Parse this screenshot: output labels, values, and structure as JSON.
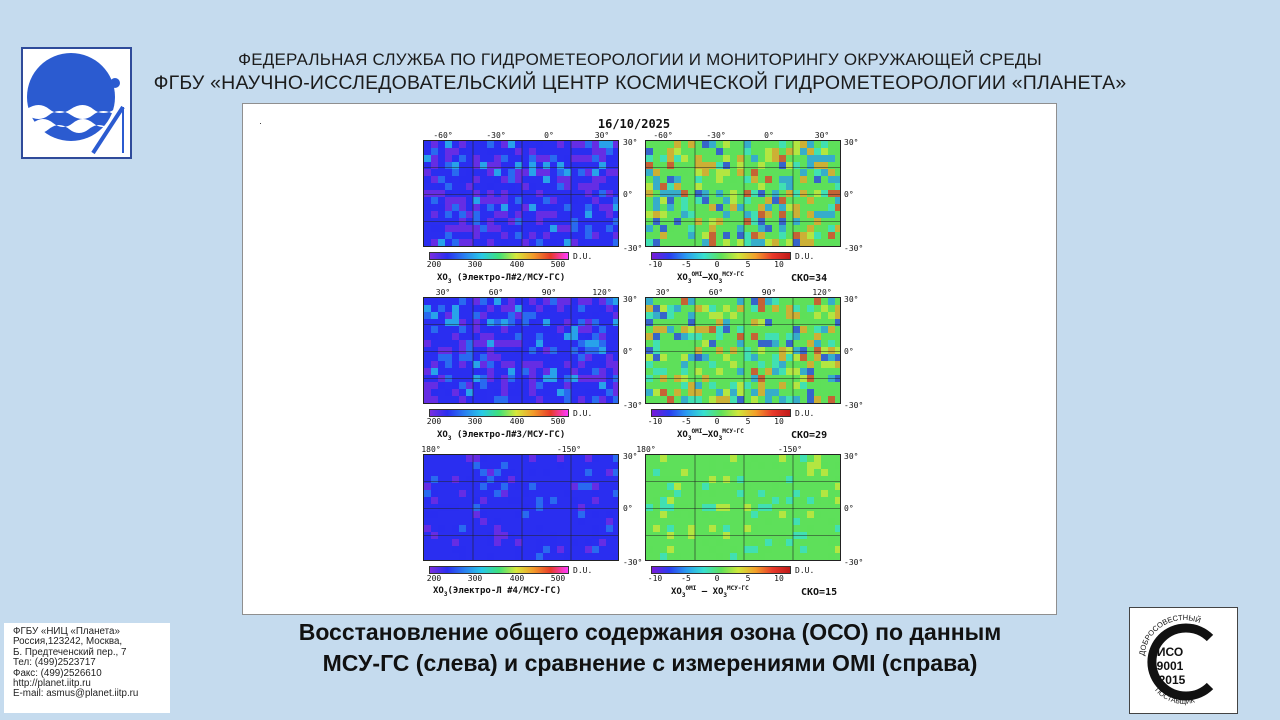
{
  "header": {
    "line1": "ФЕДЕРАЛЬНАЯ СЛУЖБА ПО ГИДРОМЕТЕОРОЛОГИИ И МОНИТОРИНГУ ОКРУЖАЮЩЕЙ СРЕДЫ",
    "line2": "ФГБУ «НАУЧНО-ИССЛЕДОВАТЕЛЬСКИЙ ЦЕНТР КОСМИЧЕСКОЙ ГИДРОМЕТЕОРОЛОГИИ «ПЛАНЕТА»"
  },
  "figure": {
    "date": "16/10/2025",
    "unit": "D.U.",
    "left_ticks": [
      "200",
      "300",
      "400",
      "500"
    ],
    "right_ticks": [
      "-10",
      "-5",
      "0",
      "5",
      "10"
    ],
    "lat_labels": [
      "30°",
      "0°",
      "-30°"
    ],
    "rows": [
      {
        "lon_labels": [
          "-60°",
          "-30°",
          "0°",
          "30°"
        ],
        "left_label": {
          "pre": "XO",
          "sub": "3",
          "post": " (Электро-Л#2/МСУ-ГС)"
        },
        "right_label": {
          "a": "XO",
          "a_sub": "3",
          "a_sup": "OMI",
          "b": "–XO",
          "b_sub": "3",
          "b_sup": "МСУ-ГС"
        },
        "sko": "СКО=34"
      },
      {
        "lon_labels": [
          "30°",
          "60°",
          "90°",
          "120°"
        ],
        "left_label": {
          "pre": "XO",
          "sub": "3",
          "post": " (Электро-Л#3/МСУ-ГС)"
        },
        "right_label": {
          "a": "XO",
          "a_sub": "3",
          "a_sup": "OMI",
          "b": "–XO",
          "b_sub": "3",
          "b_sup": "МСУ-ГС"
        },
        "sko": "СКО=29"
      },
      {
        "lon_labels": [
          "180°",
          "-150°"
        ],
        "left_label": {
          "pre": "XO",
          "sub": "3",
          "post": "(Электро-Л #4/МСУ-ГС)"
        },
        "right_label": {
          "a": "XO",
          "a_sub": "3",
          "a_sup": "OMI",
          "b": " – XO",
          "b_sub": "3",
          "b_sup": "МСУ-ГС"
        },
        "sko": "СКО=15"
      }
    ],
    "colors": {
      "ozone_scale": [
        "#7a2ee0",
        "#2a2ef0",
        "#2a7ff0",
        "#28c9e8",
        "#3ee07a",
        "#d7e83a",
        "#f29a2a",
        "#e83a2a",
        "#ff3aff"
      ],
      "diff_scale": [
        "#7a1ad8",
        "#2a3cf0",
        "#2a9cf0",
        "#38e0d0",
        "#5ee05a",
        "#d0e83a",
        "#f2a02a",
        "#e8392a",
        "#c01a1a"
      ]
    }
  },
  "caption": {
    "line1": "Восстановление общего содержания озона (ОСО) по данным",
    "line2": "МСУ-ГС (слева) и сравнение с измерениями OMI (справа)"
  },
  "contacts": [
    "ФГБУ «НИЦ «Планета»",
    "Россия,123242, Москва,",
    "Б. Предтеченский пер., 7",
    "Тел:   (499)2523717",
    "Факс: (499)2526610",
    "http://planet.iitp.ru",
    "E-mail: asmus@planet.iitp.ru"
  ],
  "certificate": {
    "top_text": "ДОБРОСОВЕСТНЫЙ",
    "line1": "ИСО",
    "line2": "9001",
    "line3": "-2015",
    "bottom_text": "ПОСТАВЩИК"
  }
}
